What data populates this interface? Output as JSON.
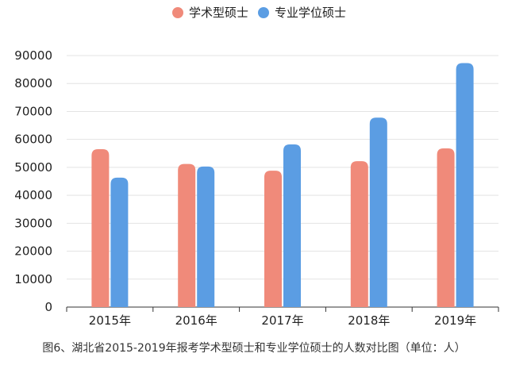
{
  "chart_data": {
    "type": "bar",
    "categories": [
      "2015年",
      "2016年",
      "2017年",
      "2018年",
      "2019年"
    ],
    "series": [
      {
        "name": "学术型硕士",
        "values": [
          56500,
          51200,
          48800,
          52200,
          56800
        ],
        "color": "#f08a7a"
      },
      {
        "name": "专业学位硕士",
        "values": [
          46300,
          50300,
          58200,
          67800,
          87300
        ],
        "color": "#5b9de3"
      }
    ],
    "ylim": [
      0,
      90000
    ],
    "yticks": [
      0,
      10000,
      20000,
      30000,
      40000,
      50000,
      60000,
      70000,
      80000,
      90000
    ],
    "grid": true,
    "legend_position": "top-center",
    "caption": "图6、湖北省2015-2019年报考学术型硕士和专业学位硕士的人数对比图（单位：人）"
  }
}
